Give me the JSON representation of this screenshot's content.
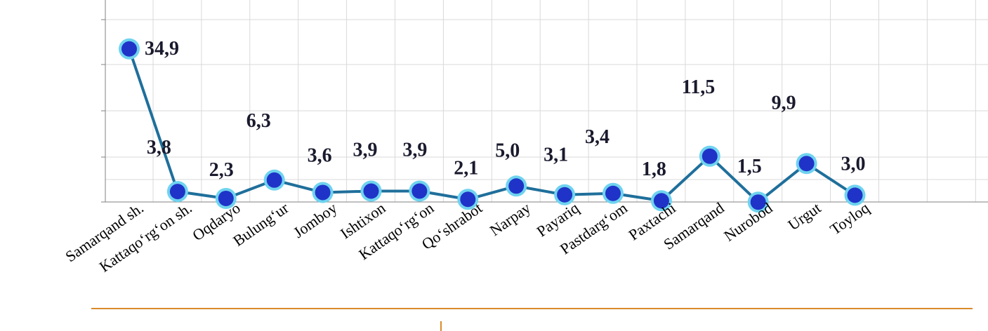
{
  "chart_data": {
    "type": "line",
    "title": "",
    "xlabel": "",
    "ylabel": "",
    "ylim": [
      0,
      40
    ],
    "grid": true,
    "legend": "none",
    "categories": [
      "Samarqand sh.",
      "Kattaqo‘rg‘on sh.",
      "Oqdaryo",
      "Bulung‘ur",
      "Jomboy",
      "Ishtixon",
      "Kattaqo‘rg‘on",
      "Qo‘shrabot",
      "Narpay",
      "Payariq",
      "Pastdarg‘om",
      "Paxtachi",
      "Samarqand",
      "Nurobod",
      "Urgut",
      "Toyloq"
    ],
    "values": [
      34.9,
      3.8,
      2.3,
      6.3,
      3.6,
      3.9,
      3.9,
      2.1,
      5.0,
      3.1,
      3.4,
      1.8,
      11.5,
      1.5,
      9.9,
      3.0
    ],
    "data_labels": [
      "34,9",
      "3,8",
      "2,3",
      "6,3",
      "3,6",
      "3,9",
      "3,9",
      "2,1",
      "5,0",
      "3,1",
      "3,4",
      "1,8",
      "11,5",
      "1,5",
      "9,9",
      "3,0"
    ],
    "colors": {
      "line": "#1f6f9b",
      "marker": "#1f33c8",
      "marker_halo": "#6fd3ef",
      "footer_rule": "#d98a2b"
    }
  }
}
